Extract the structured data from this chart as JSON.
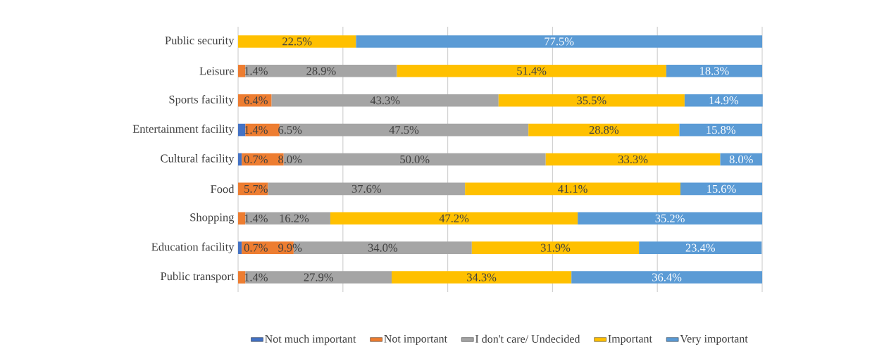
{
  "chart_data": {
    "type": "bar",
    "orientation": "horizontal",
    "stacked": true,
    "categories": [
      "Public security",
      "Leisure",
      "Sports facility",
      "Entertainment facility",
      "Cultural facility",
      "Food",
      "Shopping",
      "Education facility",
      "Public transport"
    ],
    "series": [
      {
        "name": "Not much important",
        "color": "#4472c4",
        "values": [
          null,
          null,
          null,
          1.4,
          0.7,
          null,
          null,
          0.7,
          null
        ],
        "value_labels": [
          null,
          null,
          null,
          "1.4%",
          "0.7%",
          null,
          null,
          "0.7%",
          null
        ]
      },
      {
        "name": "Not important",
        "color": "#ed7d31",
        "values": [
          null,
          1.4,
          6.4,
          6.5,
          8.0,
          5.7,
          1.4,
          9.9,
          1.4
        ],
        "value_labels": [
          null,
          "1.4%",
          "6.4%",
          "6.5%",
          "8.0%",
          "5.7%",
          "1.4%",
          "9.9%",
          "1.4%"
        ]
      },
      {
        "name": "I don't care/ Undecided",
        "color": "#a5a5a5",
        "values": [
          null,
          28.9,
          43.3,
          47.5,
          50.0,
          37.6,
          16.2,
          34.0,
          27.9
        ],
        "value_labels": [
          null,
          "28.9%",
          "43.3%",
          "47.5%",
          "50.0%",
          "37.6%",
          "16.2%",
          "34.0%",
          "27.9%"
        ]
      },
      {
        "name": "Important",
        "color": "#ffc000",
        "values": [
          22.5,
          51.4,
          35.5,
          28.8,
          33.3,
          41.1,
          47.2,
          31.9,
          34.3
        ],
        "value_labels": [
          "22.5%",
          "51.4%",
          "35.5%",
          "28.8%",
          "33.3%",
          "41.1%",
          "47.2%",
          "31.9%",
          "34.3%"
        ]
      },
      {
        "name": "Very important",
        "color": "#5b9bd5",
        "values": [
          77.5,
          18.3,
          14.9,
          15.8,
          8.0,
          15.6,
          35.2,
          23.4,
          36.4
        ],
        "value_labels": [
          "77.5%",
          "18.3%",
          "14.9%",
          "15.8%",
          "8.0%",
          "15.6%",
          "35.2%",
          "23.4%",
          "36.4%"
        ]
      }
    ],
    "xlim": [
      0,
      100
    ],
    "xticks": [
      {
        "value": 0,
        "label": null
      },
      {
        "value": 20,
        "label": null
      },
      {
        "value": 40,
        "label": null
      },
      {
        "value": 60,
        "label": null
      },
      {
        "value": 80,
        "label": null
      },
      {
        "value": 100,
        "label": null
      }
    ],
    "grid": "x",
    "legend": "bottom",
    "tick_labels": "y"
  }
}
